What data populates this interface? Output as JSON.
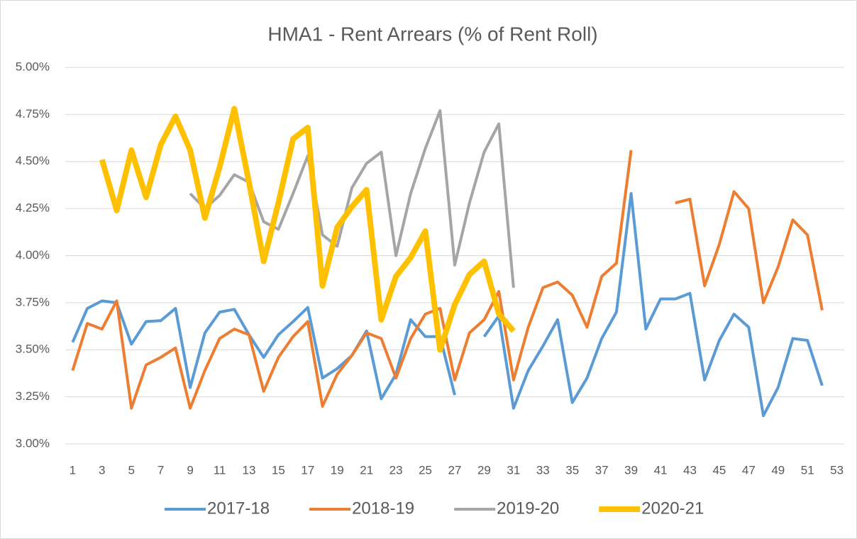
{
  "chart_data": {
    "type": "line",
    "title": "HMA1 - Rent Arrears (% of Rent Roll)",
    "categories": [
      1,
      null,
      3,
      null,
      5,
      null,
      7,
      null,
      9,
      null,
      11,
      null,
      13,
      null,
      15,
      null,
      17,
      null,
      19,
      null,
      21,
      null,
      23,
      null,
      25,
      null,
      27,
      null,
      29,
      null,
      31,
      null,
      33,
      null,
      35,
      null,
      37,
      null,
      39,
      null,
      41,
      null,
      43,
      null,
      45,
      null,
      47,
      null,
      49,
      null,
      51,
      null,
      53
    ],
    "ylim": [
      3,
      5
    ],
    "yticks": [
      {
        "value": 3,
        "label": "3.00%"
      },
      {
        "value": 3.25,
        "label": "3.25%"
      },
      {
        "value": 3.5,
        "label": "3.50%"
      },
      {
        "value": 3.75,
        "label": "3.75%"
      },
      {
        "value": 4,
        "label": "4.00%"
      },
      {
        "value": 4.25,
        "label": "4.25%"
      },
      {
        "value": 4.5,
        "label": "4.50%"
      },
      {
        "value": 4.75,
        "label": "4.75%"
      },
      {
        "value": 5,
        "label": "5.00%"
      }
    ],
    "grid": true,
    "legend": "bottom",
    "series": [
      {
        "name": "2017-18",
        "color": "#5b9bd5",
        "width": 4,
        "values": [
          3.54,
          3.72,
          3.76,
          3.75,
          3.53,
          3.65,
          3.655,
          3.72,
          3.3,
          3.59,
          3.7,
          3.715,
          3.58,
          3.46,
          3.58,
          3.65,
          3.725,
          3.35,
          3.4,
          3.47,
          3.6,
          3.24,
          3.37,
          3.66,
          3.57,
          3.57,
          3.26,
          null,
          3.57,
          3.68,
          3.19,
          3.39,
          3.52,
          3.66,
          3.22,
          3.35,
          3.56,
          3.7,
          4.33,
          3.61,
          3.77,
          3.77,
          3.8,
          3.34,
          3.55,
          3.69,
          3.62,
          3.15,
          3.3,
          3.56,
          3.55,
          3.31,
          null
        ]
      },
      {
        "name": "2018-19",
        "color": "#ed7d31",
        "width": 4,
        "values": [
          3.39,
          3.64,
          3.61,
          3.76,
          3.19,
          3.42,
          3.46,
          3.51,
          3.19,
          3.39,
          3.56,
          3.61,
          3.58,
          3.28,
          3.46,
          3.57,
          3.65,
          3.2,
          3.37,
          3.47,
          3.59,
          3.56,
          3.35,
          3.56,
          3.69,
          3.72,
          3.34,
          3.59,
          3.66,
          3.81,
          3.34,
          3.62,
          3.83,
          3.86,
          3.79,
          3.62,
          3.89,
          3.96,
          4.56,
          null,
          null,
          4.28,
          4.3,
          3.84,
          4.06,
          4.34,
          4.25,
          3.75,
          3.94,
          4.19,
          4.11,
          3.71,
          null
        ]
      },
      {
        "name": "2019-20",
        "color": "#a5a5a5",
        "width": 4,
        "values": [
          null,
          null,
          null,
          null,
          null,
          null,
          null,
          null,
          4.33,
          4.25,
          4.32,
          4.43,
          4.39,
          4.18,
          4.14,
          4.33,
          4.53,
          4.11,
          4.05,
          4.36,
          4.49,
          4.55,
          4.0,
          4.33,
          4.57,
          4.77,
          3.95,
          4.28,
          4.55,
          4.7,
          3.83,
          null,
          null,
          null,
          null,
          null,
          null,
          null,
          null,
          null,
          null,
          null,
          null,
          null,
          null,
          null,
          null,
          null,
          null,
          null,
          null,
          null,
          null
        ]
      },
      {
        "name": "2020-21",
        "color": "#ffc000",
        "width": 8,
        "values": [
          null,
          null,
          4.51,
          4.24,
          4.56,
          4.31,
          4.59,
          4.74,
          4.56,
          4.2,
          4.47,
          4.78,
          4.39,
          3.97,
          4.28,
          4.62,
          4.68,
          3.84,
          4.15,
          4.26,
          4.35,
          3.66,
          3.89,
          3.99,
          4.13,
          3.5,
          3.74,
          3.9,
          3.97,
          3.69,
          3.6,
          null,
          null,
          null,
          null,
          null,
          null,
          null,
          null,
          null,
          null,
          null,
          null,
          null,
          null,
          null,
          null,
          null,
          null,
          null,
          null,
          null,
          null
        ]
      }
    ]
  }
}
